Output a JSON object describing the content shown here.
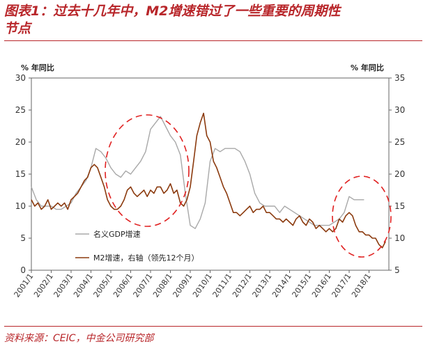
{
  "header": {
    "title_line1": "图表1：过去十几年中，M2增速错过了一些重要的周期性",
    "title_line2": "节点"
  },
  "footer": {
    "source": "资料来源：CEIC，中金公司研究部"
  },
  "chart_data": {
    "type": "line",
    "x_tick_labels": [
      "2001/1",
      "2002/1",
      "2003/1",
      "2004/1",
      "2005/1",
      "2006/1",
      "2007/1",
      "2008/1",
      "2009/1",
      "2010/1",
      "2011/1",
      "2012/1",
      "2013/1",
      "2014/1",
      "2015/1",
      "2016/1",
      "2017/1",
      "2018/1"
    ],
    "left_axis": {
      "unit": "% 年同比",
      "ylim": [
        0,
        30
      ],
      "ticks": [
        0,
        5,
        10,
        15,
        20,
        25,
        30
      ]
    },
    "right_axis": {
      "unit": "% 年同比",
      "ylim": [
        5,
        35
      ],
      "ticks": [
        5,
        10,
        15,
        20,
        25,
        30,
        35
      ]
    },
    "grid": false,
    "legend_position": "lower-left, inside plot",
    "series": [
      {
        "name": "名义GDP增速",
        "axis": "left",
        "color": "#a8a8a8",
        "x": [
          2001.0,
          2001.25,
          2001.5,
          2001.75,
          2002.0,
          2002.25,
          2002.5,
          2002.75,
          2003.0,
          2003.25,
          2003.5,
          2003.75,
          2004.0,
          2004.25,
          2004.5,
          2004.75,
          2005.0,
          2005.25,
          2005.5,
          2005.75,
          2006.0,
          2006.25,
          2006.5,
          2006.75,
          2007.0,
          2007.25,
          2007.5,
          2007.75,
          2008.0,
          2008.25,
          2008.5,
          2008.75,
          2009.0,
          2009.25,
          2009.5,
          2009.75,
          2010.0,
          2010.25,
          2010.5,
          2010.75,
          2011.0,
          2011.25,
          2011.5,
          2011.75,
          2012.0,
          2012.25,
          2012.5,
          2012.75,
          2013.0,
          2013.25,
          2013.5,
          2013.75,
          2014.0,
          2014.25,
          2014.5,
          2014.75,
          2015.0,
          2015.25,
          2015.5,
          2015.75,
          2016.0,
          2016.25,
          2016.5,
          2016.75,
          2017.0,
          2017.25,
          2017.5,
          2017.75
        ],
        "values": [
          13,
          11,
          10,
          10,
          10,
          9.5,
          9.5,
          10,
          10.5,
          12,
          13,
          14,
          16,
          19,
          18.5,
          17.5,
          16,
          15,
          14.5,
          15.5,
          15,
          16,
          17,
          18.5,
          22,
          23,
          24,
          22.5,
          21,
          20,
          18,
          12,
          7,
          6.5,
          8,
          10.5,
          17,
          19,
          18.5,
          19,
          19,
          19,
          18.5,
          17,
          15,
          12,
          10.5,
          10,
          10,
          10,
          9,
          10,
          9.5,
          9,
          8.5,
          8,
          7.5,
          7,
          7,
          7,
          7,
          7.5,
          8,
          9,
          11.5,
          11,
          11,
          11
        ]
      },
      {
        "name": "M2增速，右轴（领先12个月）",
        "axis": "right",
        "color": "#8b3a0e",
        "x": [
          2001.0,
          2001.17,
          2001.33,
          2001.5,
          2001.67,
          2001.83,
          2002.0,
          2002.17,
          2002.33,
          2002.5,
          2002.67,
          2002.83,
          2003.0,
          2003.17,
          2003.33,
          2003.5,
          2003.67,
          2003.83,
          2004.0,
          2004.17,
          2004.33,
          2004.5,
          2004.67,
          2004.83,
          2005.0,
          2005.17,
          2005.33,
          2005.5,
          2005.67,
          2005.83,
          2006.0,
          2006.17,
          2006.33,
          2006.5,
          2006.67,
          2006.83,
          2007.0,
          2007.17,
          2007.33,
          2007.5,
          2007.67,
          2007.83,
          2008.0,
          2008.17,
          2008.33,
          2008.5,
          2008.67,
          2008.83,
          2009.0,
          2009.17,
          2009.33,
          2009.5,
          2009.67,
          2009.83,
          2010.0,
          2010.17,
          2010.33,
          2010.5,
          2010.67,
          2010.83,
          2011.0,
          2011.17,
          2011.33,
          2011.5,
          2011.67,
          2011.83,
          2012.0,
          2012.17,
          2012.33,
          2012.5,
          2012.67,
          2012.83,
          2013.0,
          2013.17,
          2013.33,
          2013.5,
          2013.67,
          2013.83,
          2014.0,
          2014.17,
          2014.33,
          2014.5,
          2014.67,
          2014.83,
          2015.0,
          2015.17,
          2015.33,
          2015.5,
          2015.67,
          2015.83,
          2016.0,
          2016.17,
          2016.33,
          2016.5,
          2016.67,
          2016.83,
          2017.0,
          2017.17,
          2017.33,
          2017.5,
          2017.67,
          2017.83,
          2018.0,
          2018.17,
          2018.33,
          2018.5,
          2018.67,
          2018.83
        ],
        "values": [
          16,
          15,
          15.5,
          14.5,
          15,
          16,
          14.5,
          15,
          15.5,
          15,
          15.5,
          14.5,
          16,
          16.5,
          17,
          18,
          19,
          19.5,
          21,
          21.5,
          21,
          19.5,
          18,
          16,
          15,
          14.5,
          14.5,
          15,
          16,
          17.5,
          18,
          17,
          16.5,
          17,
          17.5,
          16.5,
          17.5,
          17,
          18,
          18,
          17,
          17.5,
          18.5,
          17,
          17.5,
          15.5,
          15,
          16,
          18,
          22,
          26,
          28,
          29.5,
          26,
          25,
          22,
          21,
          19.5,
          18,
          17,
          15.5,
          14,
          14,
          13.5,
          14,
          14.5,
          15,
          14,
          14.5,
          14.5,
          15,
          14,
          14,
          13.5,
          13,
          13,
          12.5,
          13,
          12.5,
          12,
          13,
          13.5,
          12.5,
          12,
          13,
          12.5,
          11.5,
          12,
          11.5,
          11,
          11.5,
          11,
          11.5,
          13,
          12.5,
          13.5,
          14,
          13.5,
          12,
          11,
          11,
          10.5,
          10.5,
          10,
          10,
          9,
          8.5,
          9.5
        ]
      }
    ]
  }
}
